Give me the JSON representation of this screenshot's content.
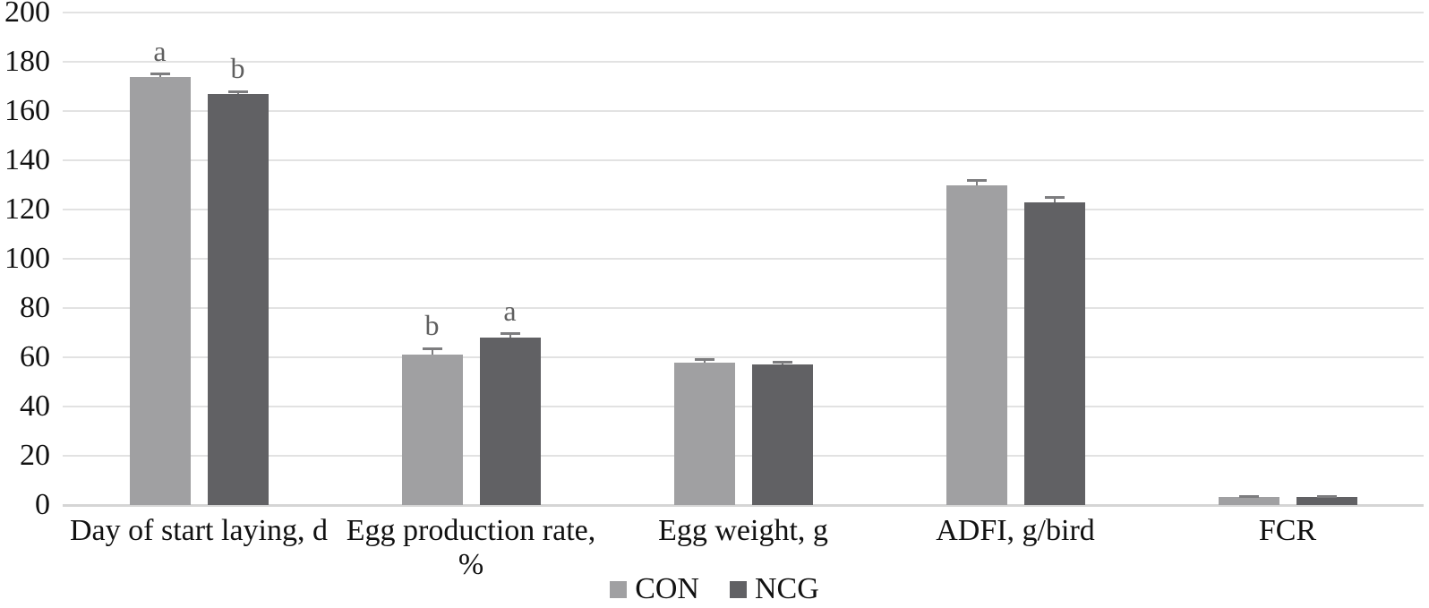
{
  "chart_data": {
    "type": "bar",
    "title": "",
    "xlabel": "",
    "ylabel": "",
    "categories": [
      "Day of start laying, d",
      "Egg production rate, %",
      "Egg weight, g",
      "ADFI, g/bird",
      "FCR"
    ],
    "series": [
      {
        "name": "CON",
        "color": "#a0a0a2",
        "values": [
          174,
          61,
          58,
          130,
          3.2
        ],
        "errors": [
          1,
          2.5,
          1,
          2,
          0.3
        ],
        "letters": [
          "a",
          "b",
          "",
          "",
          ""
        ]
      },
      {
        "name": "NCG",
        "color": "#616164",
        "values": [
          167,
          68,
          57,
          123,
          3.1
        ],
        "errors": [
          1,
          1.5,
          1,
          2,
          0.3
        ],
        "letters": [
          "b",
          "a",
          "",
          "",
          ""
        ]
      }
    ],
    "ylim": [
      0,
      200
    ],
    "ytick_step": 20,
    "yticks": [
      0,
      20,
      40,
      60,
      80,
      100,
      120,
      140,
      160,
      180,
      200
    ],
    "grid": true,
    "error_bar_color": "#7d7d7f",
    "gridline_color": "#e2e2e2",
    "letter_color": "#5f5f5f",
    "legend_position": "bottom"
  }
}
